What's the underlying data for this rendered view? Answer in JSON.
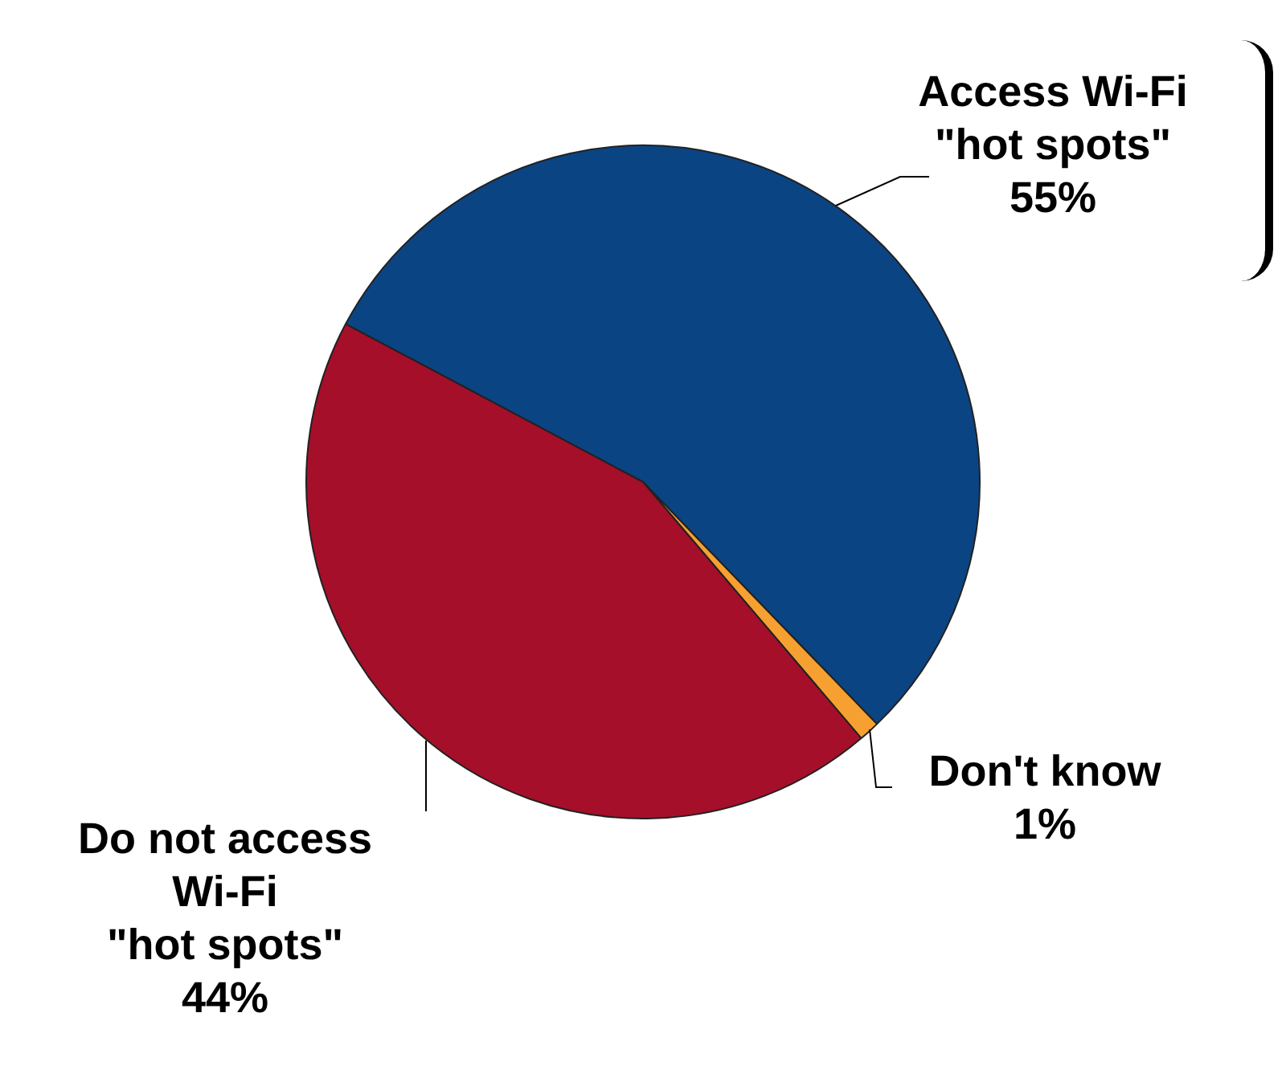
{
  "chart_data": {
    "type": "pie",
    "categories": [
      "Access Wi-Fi\n\"hot spots\"",
      "Don't know",
      "Do not access\nWi-Fi\n\"hot spots\""
    ],
    "values": [
      55,
      1,
      44
    ],
    "colors": [
      "#0b4483",
      "#f5a030",
      "#a50f2a"
    ],
    "value_labels": [
      "55%",
      "1%",
      "44%"
    ],
    "legend": false
  }
}
